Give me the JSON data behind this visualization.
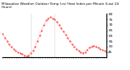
{
  "title": "Milwaukee Weather Outdoor Temp (vs) Heat Index per Minute (Last 24 Hours)",
  "background_color": "#ffffff",
  "line_color": "#ff0000",
  "vline_color": "#aaaaaa",
  "vline_positions": [
    0.27,
    0.5
  ],
  "y_values": [
    62,
    58,
    55,
    52,
    50,
    48,
    46,
    45,
    44,
    43,
    42,
    41,
    42,
    44,
    46,
    50,
    55,
    60,
    65,
    70,
    74,
    76,
    77,
    76,
    75,
    73,
    70,
    67,
    64,
    61,
    58,
    55,
    52,
    50,
    48,
    46,
    45,
    44,
    45,
    47,
    49,
    50,
    51,
    50,
    49,
    48,
    47,
    46,
    45
  ],
  "ylim": [
    40,
    80
  ],
  "yticks": [
    45,
    50,
    55,
    60,
    65,
    70,
    75,
    80
  ],
  "tick_fontsize": 3.2,
  "title_fontsize": 3.0,
  "markersize": 0.8,
  "linewidth": 0.4
}
